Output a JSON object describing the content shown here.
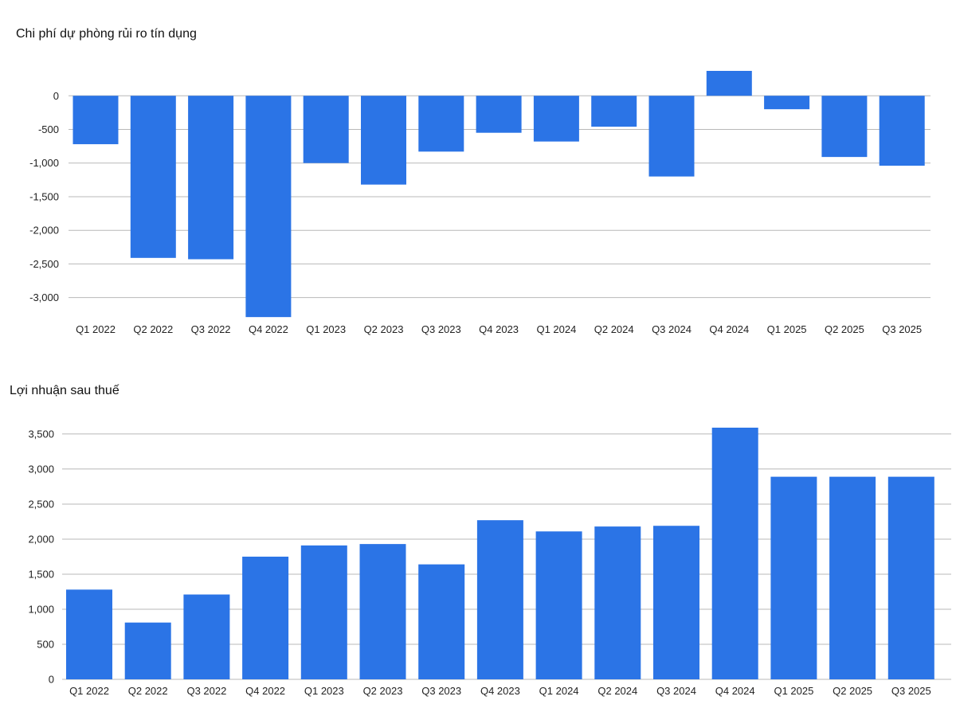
{
  "chart_data": [
    {
      "type": "bar",
      "title": "Chi phí dự phòng rủi ro tín dụng",
      "categories": [
        "Q1 2022",
        "Q2 2022",
        "Q3 2022",
        "Q4 2022",
        "Q1 2023",
        "Q2 2023",
        "Q3 2023",
        "Q4 2023",
        "Q1 2024",
        "Q2 2024",
        "Q3 2024",
        "Q4 2024",
        "Q1 2025",
        "Q2 2025",
        "Q3 2025"
      ],
      "values": [
        -720,
        -2410,
        -2430,
        -3290,
        -1000,
        -1320,
        -830,
        -550,
        -680,
        -460,
        -1200,
        370,
        -200,
        -910,
        -1040
      ],
      "yticks": [
        0,
        -500,
        -1000,
        -1500,
        -2000,
        -2500,
        -3000
      ],
      "ytick_labels": [
        "0",
        "-500",
        "-1,000",
        "-1,500",
        "-2,000",
        "-2,500",
        "-3,000"
      ],
      "ylim": [
        -3300,
        370
      ],
      "grid": true,
      "color": "#2b74e6"
    },
    {
      "type": "bar",
      "title": "Lợi nhuận sau thuế",
      "categories": [
        "Q1 2022",
        "Q2 2022",
        "Q3 2022",
        "Q4 2022",
        "Q1 2023",
        "Q2 2023",
        "Q3 2023",
        "Q4 2023",
        "Q1 2024",
        "Q2 2024",
        "Q3 2024",
        "Q4 2024",
        "Q1 2025",
        "Q2 2025",
        "Q3 2025"
      ],
      "values": [
        1280,
        810,
        1210,
        1750,
        1910,
        1930,
        1640,
        2270,
        2110,
        2180,
        2190,
        3590,
        2890,
        2890,
        2890
      ],
      "yticks": [
        0,
        500,
        1000,
        1500,
        2000,
        2500,
        3000,
        3500
      ],
      "ytick_labels": [
        "0",
        "500",
        "1,000",
        "1,500",
        "2,000",
        "2,500",
        "3,000",
        "3,500"
      ],
      "ylim": [
        0,
        3590
      ],
      "grid": true,
      "color": "#2b74e6"
    }
  ]
}
